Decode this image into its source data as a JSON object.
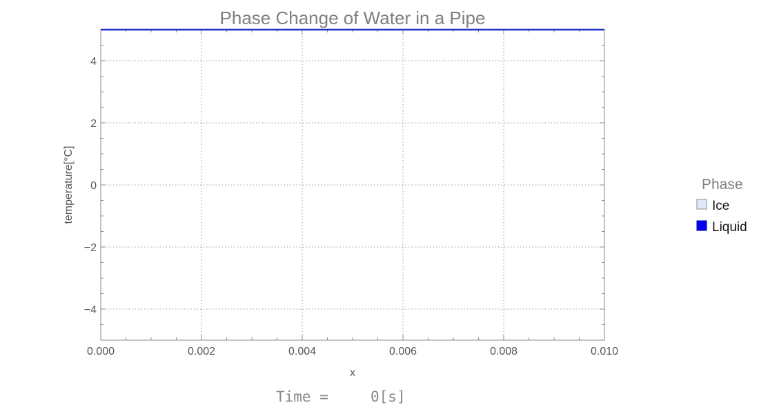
{
  "chart_data": {
    "type": "line",
    "title": "Phase Change of Water in a Pipe",
    "xlabel": "x",
    "ylabel": "temperature[°C]",
    "xlim": [
      0,
      0.01
    ],
    "ylim": [
      -5,
      5
    ],
    "x_ticks": [
      0,
      0.002,
      0.004,
      0.006,
      0.008,
      0.01
    ],
    "x_tick_labels": [
      "0.000",
      "0.002",
      "0.004",
      "0.006",
      "0.008",
      "0.010"
    ],
    "y_ticks": [
      -4,
      -2,
      0,
      2,
      4
    ],
    "y_tick_labels": [
      "−4",
      "−2",
      "0",
      "2",
      "4"
    ],
    "grid": true,
    "grid_style": "dotted",
    "legend": {
      "title": "Phase",
      "placement": "right",
      "entries": [
        {
          "label": "Ice",
          "color": "#dfeaf6",
          "border": "#7f8c99"
        },
        {
          "label": "Liquid",
          "color": "#0000ee",
          "border": "#0000aa"
        }
      ]
    },
    "series": [
      {
        "name": "Liquid",
        "color": "#1f2fcc",
        "x": [
          0,
          0.002,
          0.004,
          0.006,
          0.008,
          0.01
        ],
        "y": [
          5,
          5,
          5,
          5,
          5,
          5
        ]
      }
    ]
  },
  "time_display": {
    "label": "Time =",
    "value": "0",
    "unit": "[s]"
  },
  "colors": {
    "frame": "#888888",
    "grid": "#9a9a9a",
    "liquid_line": "#1f2fcc"
  }
}
